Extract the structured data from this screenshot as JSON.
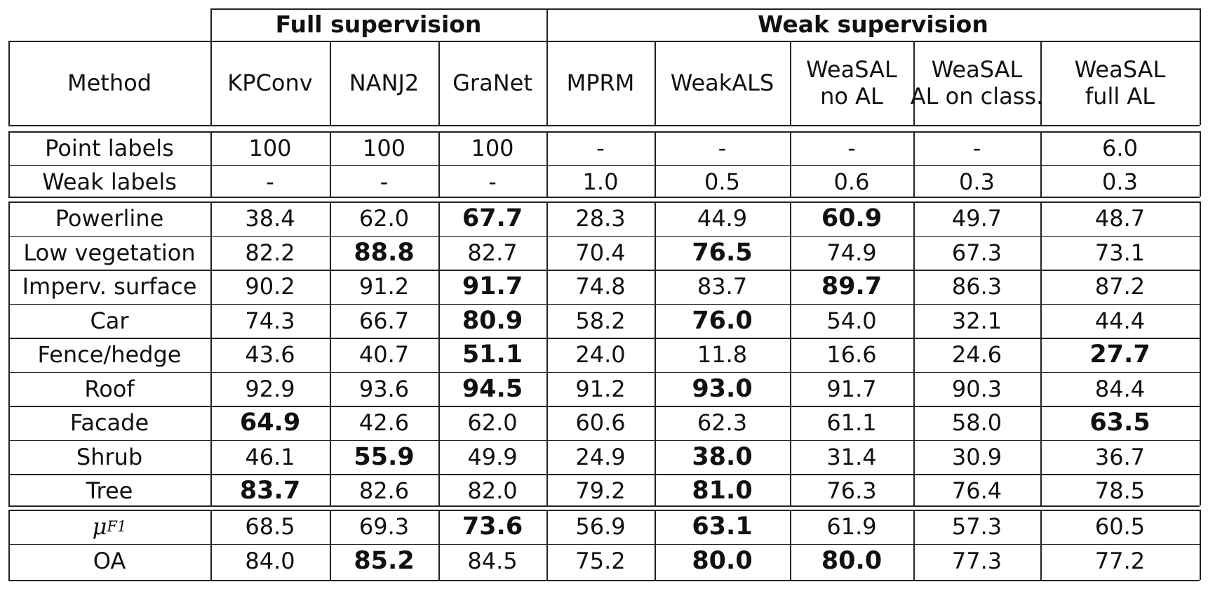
{
  "groups": [
    {
      "label": "Full supervision",
      "span": [
        1,
        3
      ]
    },
    {
      "label": "Weak supervision",
      "span": [
        4,
        8
      ]
    }
  ],
  "columns": [
    {
      "label": [
        "Method"
      ]
    },
    {
      "label": [
        "KPConv"
      ]
    },
    {
      "label": [
        "NANJ2"
      ]
    },
    {
      "label": [
        "GraNet"
      ]
    },
    {
      "label": [
        "MPRM"
      ]
    },
    {
      "label": [
        "WeakALS"
      ]
    },
    {
      "label": [
        "WeaSAL",
        "no AL"
      ]
    },
    {
      "label": [
        "WeaSAL",
        "AL on class."
      ]
    },
    {
      "label": [
        "WeaSAL",
        "full AL"
      ]
    }
  ],
  "sections": [
    {
      "rows": [
        {
          "name": "Point labels",
          "values": [
            "100",
            "100",
            "100",
            "-",
            "-",
            "-",
            "-",
            "6.0"
          ],
          "bold": []
        },
        {
          "name": "Weak labels",
          "values": [
            "-",
            "-",
            "-",
            "1.0",
            "0.5",
            "0.6",
            "0.3",
            "0.3"
          ],
          "bold": []
        }
      ]
    },
    {
      "rows": [
        {
          "name": "Powerline",
          "values": [
            "38.4",
            "62.0",
            "67.7",
            "28.3",
            "44.9",
            "60.9",
            "49.7",
            "48.7"
          ],
          "bold": [
            2,
            5
          ]
        },
        {
          "name": "Low vegetation",
          "values": [
            "82.2",
            "88.8",
            "82.7",
            "70.4",
            "76.5",
            "74.9",
            "67.3",
            "73.1"
          ],
          "bold": [
            1,
            4
          ]
        },
        {
          "name": "Imperv. surface",
          "values": [
            "90.2",
            "91.2",
            "91.7",
            "74.8",
            "83.7",
            "89.7",
            "86.3",
            "87.2"
          ],
          "bold": [
            2,
            5
          ]
        },
        {
          "name": "Car",
          "values": [
            "74.3",
            "66.7",
            "80.9",
            "58.2",
            "76.0",
            "54.0",
            "32.1",
            "44.4"
          ],
          "bold": [
            2,
            4
          ]
        },
        {
          "name": "Fence/hedge",
          "values": [
            "43.6",
            "40.7",
            "51.1",
            "24.0",
            "11.8",
            "16.6",
            "24.6",
            "27.7"
          ],
          "bold": [
            2,
            7
          ]
        },
        {
          "name": "Roof",
          "values": [
            "92.9",
            "93.6",
            "94.5",
            "91.2",
            "93.0",
            "91.7",
            "90.3",
            "84.4"
          ],
          "bold": [
            2,
            4
          ]
        },
        {
          "name": "Facade",
          "values": [
            "64.9",
            "42.6",
            "62.0",
            "60.6",
            "62.3",
            "61.1",
            "58.0",
            "63.5"
          ],
          "bold": [
            0,
            7
          ]
        },
        {
          "name": "Shrub",
          "values": [
            "46.1",
            "55.9",
            "49.9",
            "24.9",
            "38.0",
            "31.4",
            "30.9",
            "36.7"
          ],
          "bold": [
            1,
            4
          ]
        },
        {
          "name": "Tree",
          "values": [
            "83.7",
            "82.6",
            "82.0",
            "79.2",
            "81.0",
            "76.3",
            "76.4",
            "78.5"
          ],
          "bold": [
            0,
            4
          ]
        }
      ]
    },
    {
      "rows": [
        {
          "name": "μ",
          "sub": "F1",
          "values": [
            "68.5",
            "69.3",
            "73.6",
            "56.9",
            "63.1",
            "61.9",
            "57.3",
            "60.5"
          ],
          "bold": [
            2,
            4
          ]
        },
        {
          "name": "OA",
          "values": [
            "84.0",
            "85.2",
            "84.5",
            "75.2",
            "80.0",
            "80.0",
            "77.3",
            "77.2"
          ],
          "bold": [
            1,
            4,
            5
          ]
        }
      ]
    }
  ]
}
